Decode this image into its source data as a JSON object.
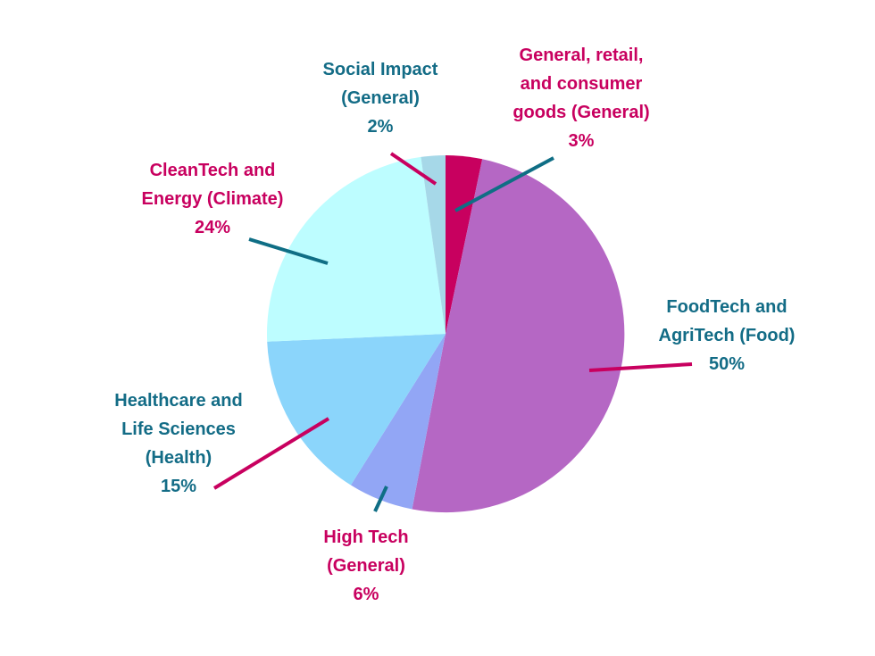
{
  "chart_data": {
    "type": "pie",
    "title": "",
    "start_angle_deg": 0,
    "direction": "clockwise",
    "slices": [
      {
        "label_lines": [
          "General, retail,",
          "and consumer",
          "goods (General)"
        ],
        "pct_label": "3%",
        "value": 3.3,
        "color": "#c8005f",
        "label_color": "#c8005f",
        "leader_color": "#0f6e85"
      },
      {
        "label_lines": [
          "FoodTech and",
          "AgriTech (Food)"
        ],
        "pct_label": "50%",
        "value": 49.7,
        "color": "#b567c4",
        "label_color": "#136c86",
        "leader_color": "#c8005f"
      },
      {
        "label_lines": [
          "High Tech",
          "(General)"
        ],
        "pct_label": "6%",
        "value": 5.9,
        "color": "#92a6f5",
        "label_color": "#c8005f",
        "leader_color": "#0f6e85"
      },
      {
        "label_lines": [
          "Healthcare and",
          "Life Sciences",
          "(Health)"
        ],
        "pct_label": "15%",
        "value": 15.4,
        "color": "#8bd5fb",
        "label_color": "#136c86",
        "leader_color": "#c8005f"
      },
      {
        "label_lines": [
          "CleanTech and",
          "Energy (Climate)"
        ],
        "pct_label": "24%",
        "value": 23.5,
        "color": "#bdfdff",
        "label_color": "#c8005f",
        "leader_color": "#0f6e85"
      },
      {
        "label_lines": [
          "Social Impact",
          "(General)"
        ],
        "pct_label": "2%",
        "value": 2.2,
        "color": "#a6d8e8",
        "label_color": "#136c86",
        "leader_color": "#c8005f"
      }
    ]
  }
}
